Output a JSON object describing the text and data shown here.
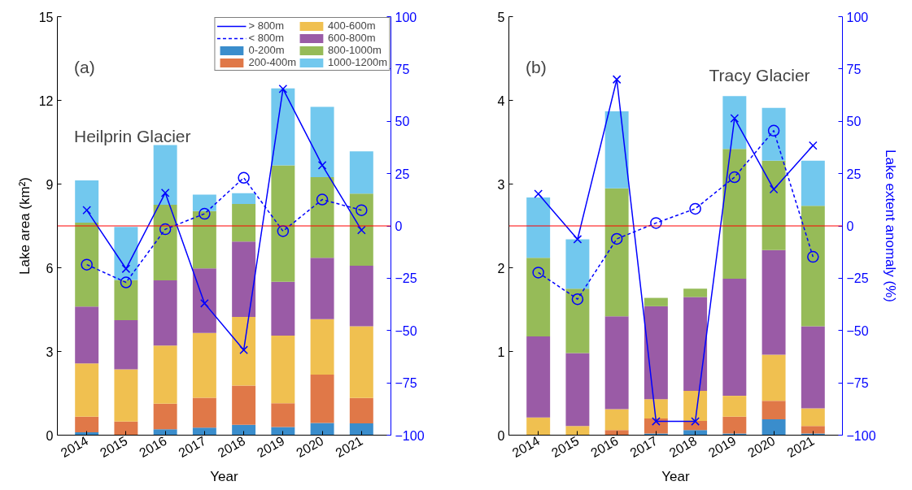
{
  "chart_data": [
    {
      "type": "bar",
      "stacked": true,
      "categories": [
        "2014",
        "2015",
        "2016",
        "2017",
        "2018",
        "2019",
        "2020",
        "2021"
      ],
      "xlabel": "Year",
      "ylabel": "Lake area (km²)",
      "ylim": [
        0,
        15
      ],
      "yticks": [
        0,
        3,
        6,
        9,
        12,
        15
      ],
      "y2lim": [
        -100,
        100
      ],
      "y2ticks": [
        -100,
        -75,
        -50,
        -25,
        0,
        25,
        50,
        75,
        100
      ],
      "grid": false,
      "legend": "top right",
      "annotations": [
        "(a)",
        "Heilprin Glacier"
      ],
      "ref_lines": [
        {
          "axis": "y2",
          "value": 0,
          "color": "#ff0000"
        }
      ],
      "series": [
        {
          "name": "> 800m",
          "type": "line",
          "axis": "y2",
          "color": "#0000ff",
          "marker": "cross",
          "line_style": "solid",
          "values": [
            7.5,
            -20.5,
            15.8,
            -37,
            -59.3,
            65.5,
            29,
            -2
          ]
        },
        {
          "name": "< 800m",
          "type": "line",
          "axis": "y2",
          "color": "#0000ff",
          "marker": "circle",
          "line_style": "dashed",
          "values": [
            -18.5,
            -27,
            -1.6,
            5.8,
            23,
            -2.5,
            12.6,
            7.5
          ]
        },
        {
          "name": "0-200m",
          "color": "#3a8dcc",
          "values": [
            0.1,
            0,
            0.21,
            0.27,
            0.37,
            0.29,
            0.44,
            0.42
          ]
        },
        {
          "name": "200-400m",
          "color": "#e07848",
          "values": [
            0.56,
            0.49,
            0.92,
            1.07,
            1.41,
            0.85,
            1.73,
            0.91
          ]
        },
        {
          "name": "400-600m",
          "color": "#f0c050",
          "values": [
            1.91,
            1.87,
            2.08,
            2.32,
            2.46,
            2.43,
            1.99,
            2.57
          ]
        },
        {
          "name": "600-800m",
          "color": "#9a5ba6",
          "values": [
            2.04,
            1.76,
            2.34,
            2.32,
            2.7,
            1.93,
            2.2,
            2.17
          ]
        },
        {
          "name": "800-1000m",
          "color": "#96bb58",
          "values": [
            3.01,
            1.44,
            2.71,
            2.05,
            1.35,
            4.17,
            2.89,
            2.59
          ]
        },
        {
          "name": "1000-1200m",
          "color": "#72c8ee",
          "values": [
            1.51,
            1.9,
            2.14,
            0.59,
            0.38,
            2.76,
            2.52,
            1.51
          ]
        }
      ]
    },
    {
      "type": "bar",
      "stacked": true,
      "categories": [
        "2014",
        "2015",
        "2016",
        "2017",
        "2018",
        "2019",
        "2020",
        "2021"
      ],
      "xlabel": "Year",
      "y2label": "Lake extent anomaly (%)",
      "ylim": [
        0,
        5
      ],
      "yticks": [
        0,
        1,
        2,
        3,
        4,
        5
      ],
      "y2lim": [
        -100,
        100
      ],
      "y2ticks": [
        -100,
        -75,
        -50,
        -25,
        0,
        25,
        50,
        75,
        100
      ],
      "grid": false,
      "annotations": [
        "(b)",
        "Tracy Glacier"
      ],
      "ref_lines": [
        {
          "axis": "y2",
          "value": 0,
          "color": "#ff0000"
        }
      ],
      "series": [
        {
          "type": "line",
          "axis": "y2",
          "color": "#0000ff",
          "marker": "cross",
          "line_style": "solid",
          "values": [
            15.3,
            -6.4,
            70,
            -93.4,
            -93.4,
            51.4,
            17.5,
            38.4
          ]
        },
        {
          "type": "line",
          "axis": "y2",
          "color": "#0000ff",
          "marker": "circle",
          "line_style": "dashed",
          "values": [
            -22.3,
            -35,
            -6.2,
            1.4,
            8.2,
            23.3,
            45.5,
            -14.8
          ]
        },
        {
          "color": "#3a8dcc",
          "values": [
            0,
            0,
            0,
            0.02,
            0.06,
            0.02,
            0.19,
            0.02
          ]
        },
        {
          "color": "#e07848",
          "values": [
            0,
            0,
            0.06,
            0.18,
            0.11,
            0.2,
            0.22,
            0.09
          ]
        },
        {
          "color": "#f0c050",
          "values": [
            0.21,
            0.11,
            0.25,
            0.23,
            0.36,
            0.25,
            0.55,
            0.21
          ]
        },
        {
          "color": "#9a5ba6",
          "values": [
            0.97,
            0.87,
            1.11,
            1.11,
            1.12,
            1.4,
            1.25,
            0.98
          ]
        },
        {
          "color": "#96bb58",
          "values": [
            0.94,
            0.77,
            1.53,
            0.1,
            0.1,
            1.55,
            1.07,
            1.44
          ]
        },
        {
          "color": "#72c8ee",
          "values": [
            0.72,
            0.59,
            0.92,
            0,
            0,
            0.63,
            0.63,
            0.54
          ]
        }
      ]
    }
  ]
}
